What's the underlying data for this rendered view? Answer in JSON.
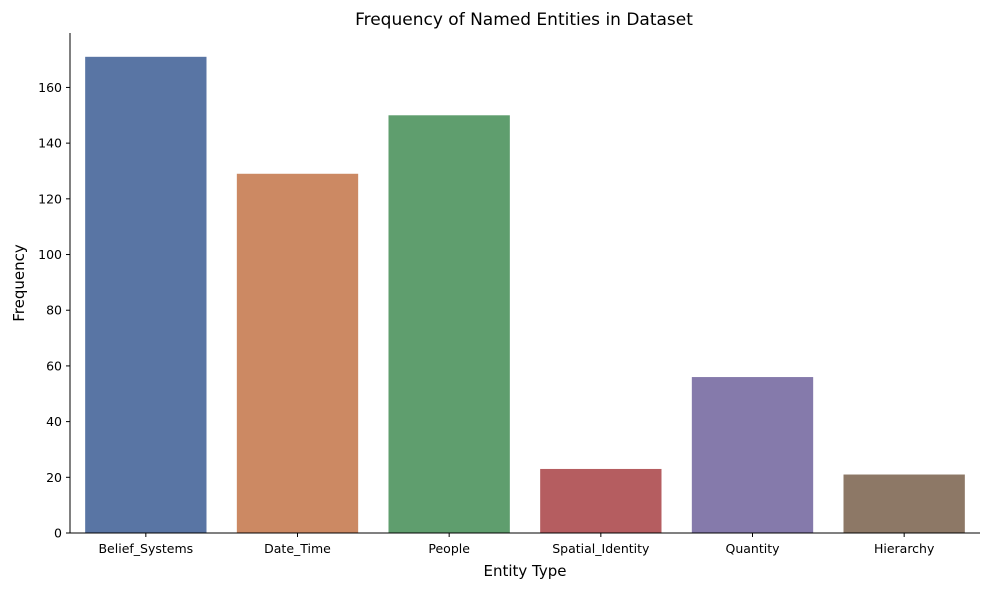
{
  "chart_data": {
    "type": "bar",
    "title": "Frequency of Named Entities in Dataset",
    "xlabel": "Entity Type",
    "ylabel": "Frequency",
    "categories": [
      "Belief_Systems",
      "Date_Time",
      "People",
      "Spatial_Identity",
      "Quantity",
      "Hierarchy"
    ],
    "values": [
      171,
      129,
      150,
      23,
      56,
      21
    ],
    "colors": [
      "#5975a4",
      "#cc8963",
      "#5f9e6e",
      "#b55d60",
      "#857aab",
      "#8d7866"
    ],
    "ylim": [
      0,
      179.55
    ],
    "yticks": [
      0,
      20,
      40,
      60,
      80,
      100,
      120,
      140,
      160
    ],
    "grid": false,
    "legend": "none"
  }
}
